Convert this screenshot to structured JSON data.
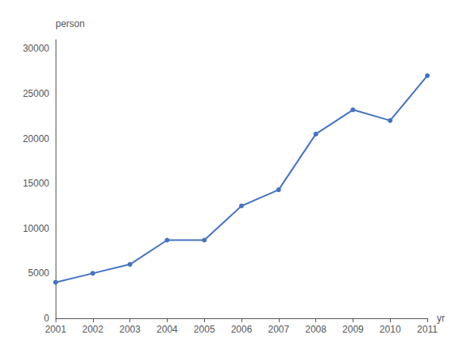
{
  "chart_data": {
    "type": "line",
    "x": [
      2001,
      2002,
      2003,
      2004,
      2005,
      2006,
      2007,
      2008,
      2009,
      2010,
      2011
    ],
    "values": [
      4000,
      5000,
      6000,
      8700,
      8700,
      12500,
      14300,
      20500,
      23200,
      22000,
      27000
    ],
    "color": "#4472c4",
    "marker": "circle",
    "xlabel": "yr",
    "ylabel": "person",
    "xlim": [
      2001,
      2011
    ],
    "xticks": [
      2001,
      2002,
      2003,
      2004,
      2005,
      2006,
      2007,
      2008,
      2009,
      2010,
      2011
    ],
    "ylim": [
      0,
      31000
    ],
    "yticks": [
      0,
      5000,
      10000,
      15000,
      20000,
      25000,
      30000
    ],
    "grid": false
  }
}
